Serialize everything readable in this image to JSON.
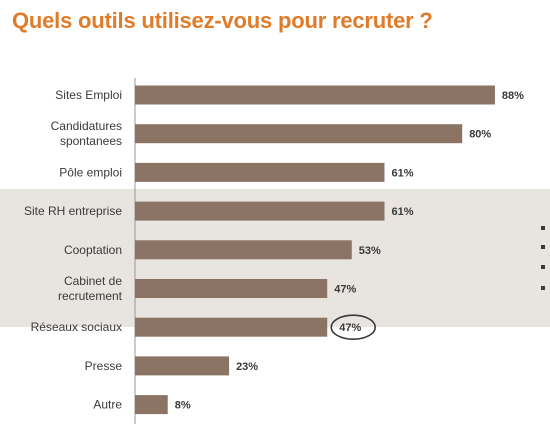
{
  "title": "Quels outils utilisez-vous pour recruter ?",
  "chart_data": {
    "type": "bar",
    "orientation": "horizontal",
    "title": "Quels outils utilisez-vous pour recruter ?",
    "categories": [
      [
        "Sites Emploi"
      ],
      [
        "Candidatures",
        "spontanees"
      ],
      [
        "Pôle emploi"
      ],
      [
        "Site RH entreprise"
      ],
      [
        "Cooptation"
      ],
      [
        "Cabinet de",
        "recrutement"
      ],
      [
        "Réseaux sociaux"
      ],
      [
        "Presse"
      ],
      [
        "Autre"
      ]
    ],
    "values": [
      88,
      80,
      61,
      61,
      53,
      47,
      47,
      23,
      8
    ],
    "value_labels": [
      "88%",
      "80%",
      "61%",
      "61%",
      "53%",
      "47%",
      "47%",
      "23%",
      "8%"
    ],
    "highlighted_index": 6,
    "xlim": [
      0,
      100
    ],
    "grid": false,
    "bar_color": "#8b7463",
    "highlight_band_color": "#e8e4e0",
    "title_color": "#e07b2a"
  }
}
